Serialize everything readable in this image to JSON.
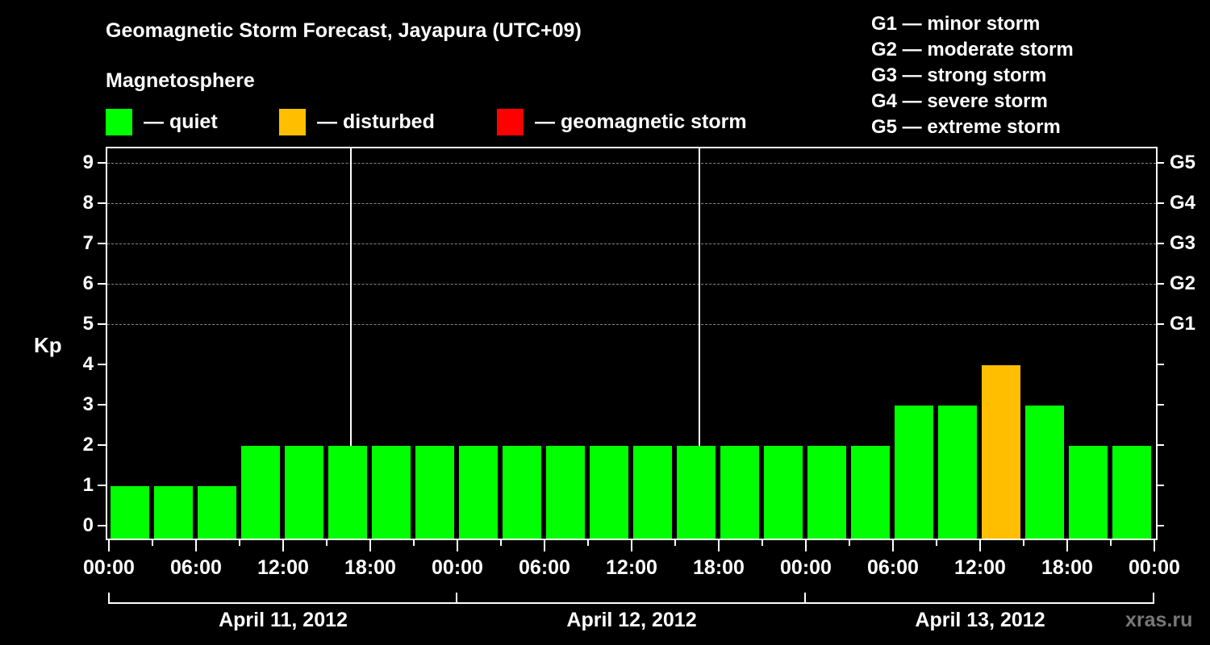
{
  "title": "Geomagnetic Storm Forecast, Jayapura (UTC+09)",
  "subtitle": "Magnetosphere",
  "legend": [
    {
      "label": "— quiet",
      "color": "#00ff00"
    },
    {
      "label": "— disturbed",
      "color": "#ffbf00"
    },
    {
      "label": "— geomagnetic storm",
      "color": "#ff0000"
    }
  ],
  "g_scale_legend": [
    "G1 — minor storm",
    "G2 — moderate storm",
    "G3 — strong storm",
    "G4 — severe storm",
    "G5 — extreme storm"
  ],
  "watermark": "xras.ru",
  "chart_data": {
    "type": "bar",
    "title": "Geomagnetic Storm Forecast, Jayapura (UTC+09)",
    "xlabel": "",
    "ylabel": "Kp",
    "ylim": [
      0,
      9
    ],
    "yticks": [
      0,
      1,
      2,
      3,
      4,
      5,
      6,
      7,
      8,
      9
    ],
    "right_axis_ticks": [
      {
        "kp": 5,
        "label": "G1"
      },
      {
        "kp": 6,
        "label": "G2"
      },
      {
        "kp": 7,
        "label": "G3"
      },
      {
        "kp": 8,
        "label": "G4"
      },
      {
        "kp": 9,
        "label": "G5"
      }
    ],
    "grid": "dashed horizontal at Kp 5-9",
    "interval_hours": 3,
    "x_tick_labels": [
      "00:00",
      "06:00",
      "12:00",
      "18:00",
      "00:00",
      "06:00",
      "12:00",
      "18:00",
      "00:00",
      "06:00",
      "12:00",
      "18:00",
      "00:00"
    ],
    "dates": [
      "April 11, 2012",
      "April 12, 2012",
      "April 13, 2012"
    ],
    "categories": [
      "Apr 11 00:00",
      "Apr 11 03:00",
      "Apr 11 06:00",
      "Apr 11 09:00",
      "Apr 11 12:00",
      "Apr 11 15:00",
      "Apr 11 18:00",
      "Apr 11 21:00",
      "Apr 12 00:00",
      "Apr 12 03:00",
      "Apr 12 06:00",
      "Apr 12 09:00",
      "Apr 12 12:00",
      "Apr 12 15:00",
      "Apr 12 18:00",
      "Apr 12 21:00",
      "Apr 13 00:00",
      "Apr 13 03:00",
      "Apr 13 06:00",
      "Apr 13 09:00",
      "Apr 13 12:00",
      "Apr 13 15:00",
      "Apr 13 18:00",
      "Apr 13 21:00"
    ],
    "values": [
      1,
      1,
      1,
      2,
      2,
      2,
      2,
      2,
      2,
      2,
      2,
      2,
      2,
      2,
      2,
      2,
      2,
      2,
      3,
      3,
      4,
      3,
      2,
      2
    ],
    "colors": {
      "quiet": "#00ff00",
      "disturbed": "#ffbf00",
      "storm": "#ff0000"
    },
    "legend": [
      "quiet",
      "disturbed",
      "geomagnetic storm"
    ]
  }
}
